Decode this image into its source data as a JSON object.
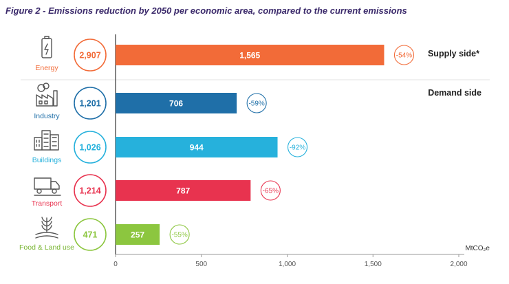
{
  "title": "Figure 2 - Emissions reduction by 2050 per economic area, compared to the current emissions",
  "chart_data": {
    "type": "bar",
    "orientation": "horizontal",
    "title": "Figure 2 - Emissions reduction by 2050 per economic area, compared to the current emissions",
    "xlabel": "MtCO₂e",
    "xlim": [
      0,
      2000
    ],
    "ticks": [
      0,
      500,
      1000,
      1500,
      2000
    ],
    "tick_labels": [
      "0",
      "500",
      "1,000",
      "1,500",
      "2,000"
    ],
    "groups": [
      {
        "label": "Supply side*",
        "categories": [
          "energy"
        ]
      },
      {
        "label": "Demand side",
        "categories": [
          "industry",
          "buildings",
          "transport",
          "food"
        ]
      }
    ],
    "categories": [
      {
        "key": "energy",
        "label": "Energy",
        "icon": "battery-icon",
        "current": 2907,
        "current_label": "2,907",
        "value": 1565,
        "value_label": "1,565",
        "reduction": "-54%",
        "color": "#f26b38",
        "label_color": "#f26b38"
      },
      {
        "key": "industry",
        "label": "Industry",
        "icon": "factory-icon",
        "current": 1201,
        "current_label": "1,201",
        "value": 706,
        "value_label": "706",
        "reduction": "-59%",
        "color": "#1f6fa8",
        "label_color": "#1f6fa8"
      },
      {
        "key": "buildings",
        "label": "Buildings",
        "icon": "buildings-icon",
        "current": 1026,
        "current_label": "1,026",
        "value": 944,
        "value_label": "944",
        "reduction": "-92%",
        "color": "#26b1dc",
        "label_color": "#26b1dc"
      },
      {
        "key": "transport",
        "label": "Transport",
        "icon": "truck-icon",
        "current": 1214,
        "current_label": "1,214",
        "value": 787,
        "value_label": "787",
        "reduction": "-65%",
        "color": "#e8334f",
        "label_color": "#e8334f"
      },
      {
        "key": "food",
        "label": "Food & Land use",
        "icon": "plant-icon",
        "current": 471,
        "current_label": "471",
        "value": 257,
        "value_label": "257",
        "reduction": "-55%",
        "color": "#8cc63f",
        "label_color": "#7ab634"
      }
    ]
  }
}
